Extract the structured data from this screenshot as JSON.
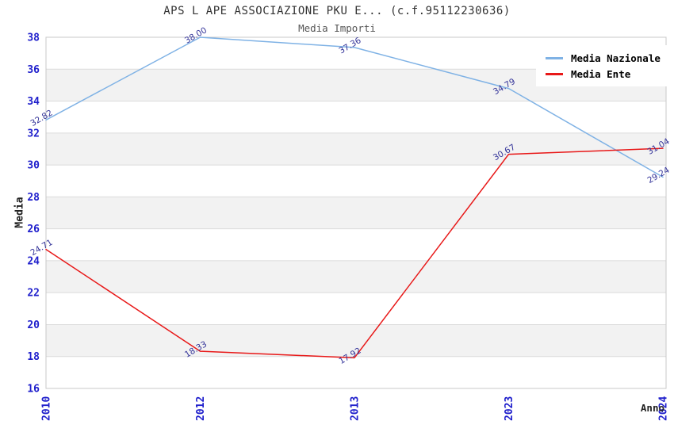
{
  "chart_data": {
    "type": "line",
    "title": "APS L APE ASSOCIAZIONE PKU E... (c.f.95112230636)",
    "subtitle": "Media Importi",
    "xlabel": "Anno",
    "ylabel": "Media",
    "categories": [
      "2010",
      "2012",
      "2013",
      "2023",
      "2024"
    ],
    "series": [
      {
        "name": "Media Nazionale",
        "color": "#7FB2E5",
        "values": [
          32.82,
          38.0,
          37.36,
          34.79,
          29.24
        ]
      },
      {
        "name": "Media Ente",
        "color": "#E81818",
        "values": [
          24.71,
          18.33,
          17.92,
          30.67,
          31.04
        ]
      }
    ],
    "ylim": [
      16,
      38
    ],
    "ytick_step": 2,
    "grid": true,
    "legend_position": "top-right",
    "colors": {
      "tick_label": "#2020CC",
      "data_label": "#333399",
      "band": "#F2F2F2",
      "gridline": "#DBDBDB",
      "border": "#C8C8C8",
      "title": "#333333",
      "subtitle": "#555555",
      "axis_label": "#222222"
    }
  }
}
